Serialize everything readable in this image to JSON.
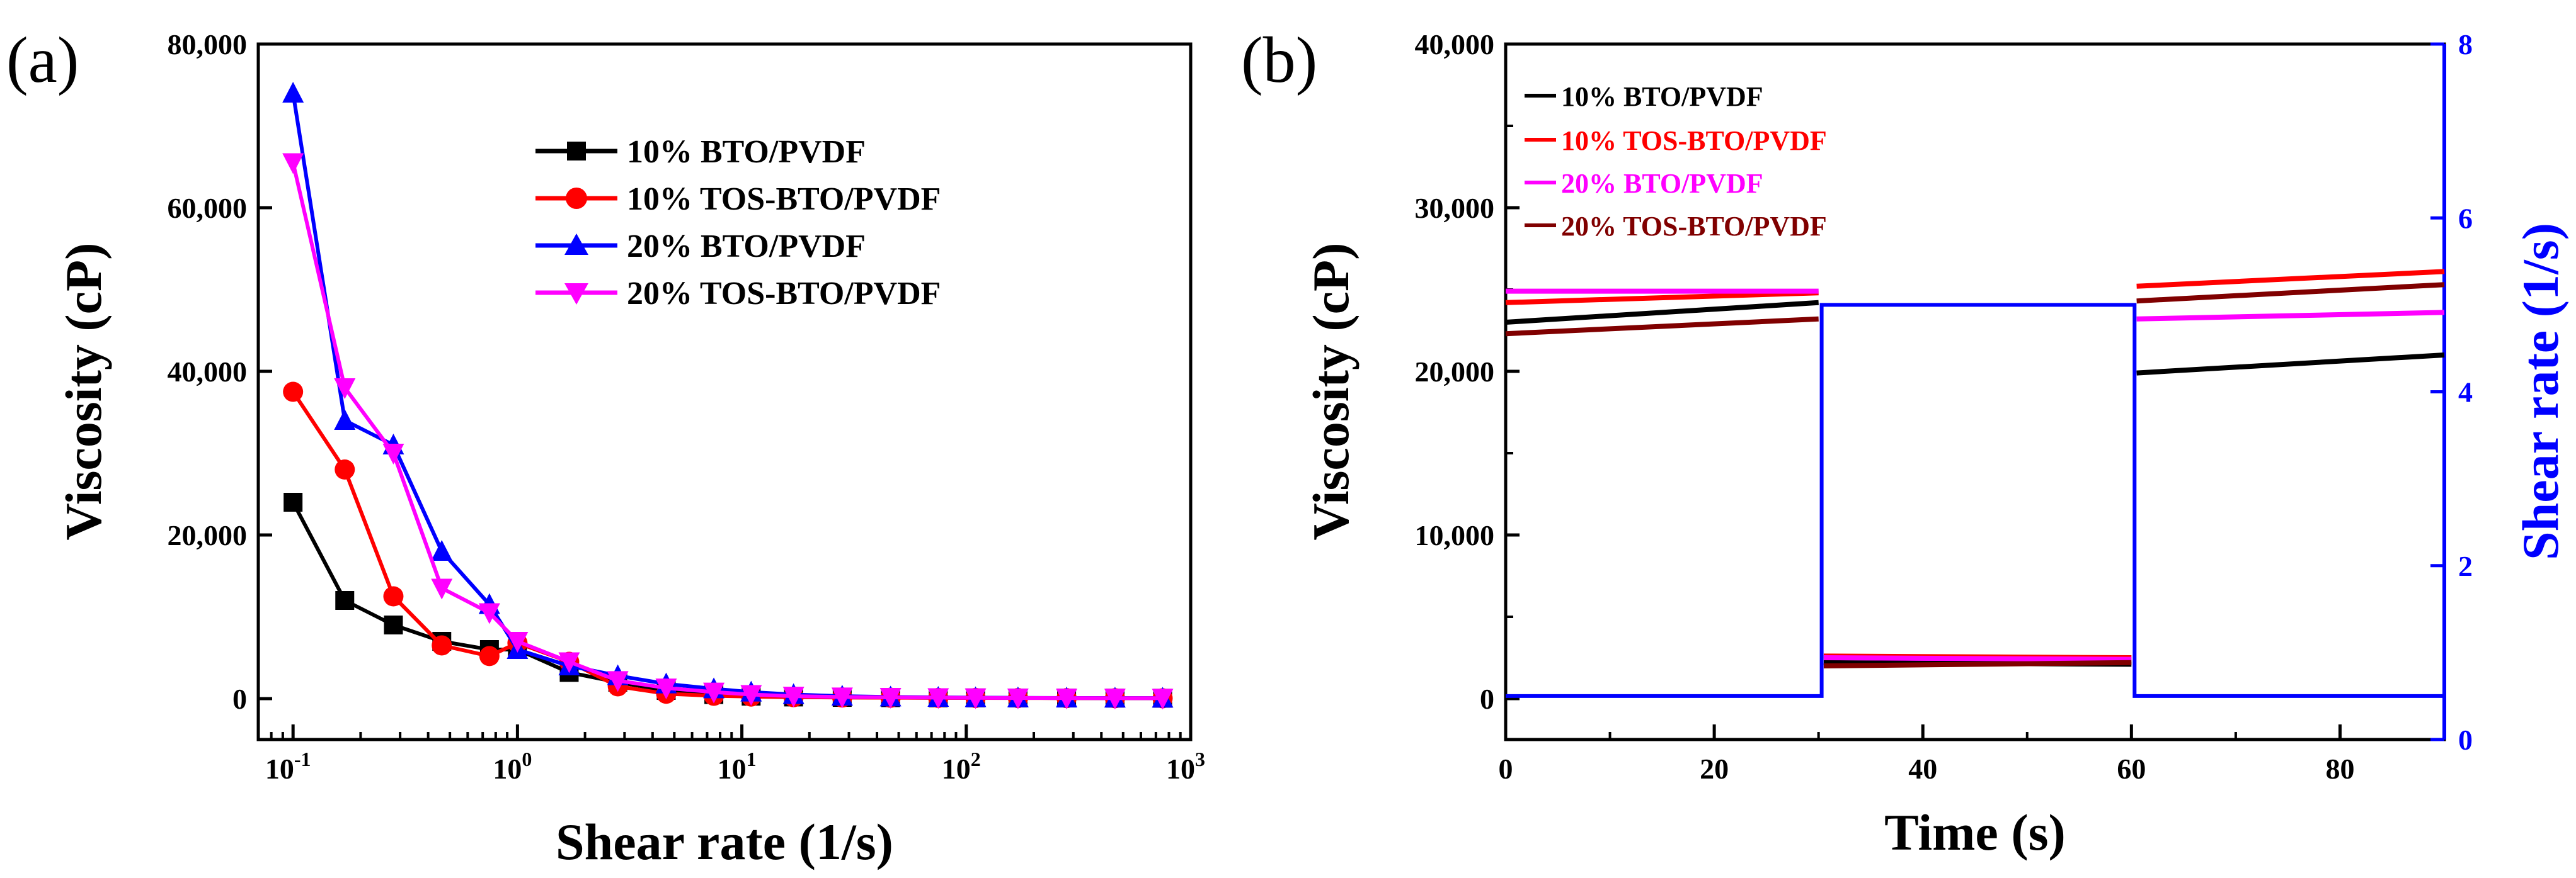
{
  "colors": {
    "black": "#000000",
    "red": "#ff0000",
    "blue": "#0000ff",
    "magenta": "#ff00ff",
    "darkred": "#800000"
  },
  "chart_data": [
    {
      "panel_label": "(a)",
      "type": "line",
      "title": "",
      "xlabel": "Shear rate (1/s)",
      "ylabel": "Viscosity (cP)",
      "xscale": "log",
      "xlim": [
        0.07,
        1000
      ],
      "ylim": [
        -5000,
        80000
      ],
      "grid": false,
      "legend_position": "top-right",
      "x_ticks": [
        {
          "value": 0.1,
          "base": "10",
          "exp": "-1"
        },
        {
          "value": 1,
          "base": "10",
          "exp": "0"
        },
        {
          "value": 10,
          "base": "10",
          "exp": "1"
        },
        {
          "value": 100,
          "base": "10",
          "exp": "2"
        },
        {
          "value": 1000,
          "base": "10",
          "exp": "3"
        }
      ],
      "y_ticks": [
        {
          "value": 0,
          "label": "0"
        },
        {
          "value": 20000,
          "label": "20,000"
        },
        {
          "value": 40000,
          "label": "40,000"
        },
        {
          "value": 60000,
          "label": "60,000"
        },
        {
          "value": 80000,
          "label": "80,000"
        }
      ],
      "x": [
        0.1,
        0.17,
        0.28,
        0.46,
        0.75,
        1.0,
        1.7,
        2.8,
        4.6,
        7.5,
        11,
        17,
        28,
        46,
        75,
        110,
        170,
        280,
        460,
        750
      ],
      "series": [
        {
          "name": "10% BTO/PVDF",
          "color": "#000000",
          "marker": "square",
          "values": [
            24000,
            12000,
            9000,
            7000,
            6000,
            6000,
            3200,
            2000,
            1000,
            500,
            300,
            200,
            150,
            120,
            100,
            90,
            80,
            70,
            60,
            50
          ]
        },
        {
          "name": "10% TOS-BTO/PVDF",
          "color": "#ff0000",
          "marker": "circle",
          "values": [
            37500,
            28000,
            12500,
            6500,
            5200,
            6800,
            4500,
            1500,
            600,
            350,
            250,
            180,
            140,
            110,
            90,
            80,
            70,
            60,
            50,
            40
          ]
        },
        {
          "name": "20% BTO/PVDF",
          "color": "#0000ff",
          "marker": "triangle-up",
          "values": [
            74000,
            34000,
            31000,
            18000,
            11500,
            6000,
            4000,
            2800,
            1800,
            1200,
            800,
            500,
            300,
            200,
            150,
            120,
            100,
            80,
            70,
            60
          ]
        },
        {
          "name": "20% TOS-BTO/PVDF",
          "color": "#ff00ff",
          "marker": "triangle-down",
          "values": [
            65500,
            38000,
            30000,
            13500,
            10500,
            7000,
            4500,
            2200,
            1300,
            800,
            500,
            300,
            200,
            150,
            120,
            100,
            80,
            70,
            60,
            50
          ]
        }
      ]
    },
    {
      "panel_label": "(b)",
      "type": "line",
      "title": "",
      "xlabel": "Time (s)",
      "ylabel": "Viscosity (cP)",
      "y2label": "Shear rate (1/s)",
      "xlim": [
        0,
        90
      ],
      "ylim": [
        -2500,
        40000
      ],
      "y2lim": [
        0,
        8
      ],
      "grid": false,
      "legend_position": "top-left",
      "x_ticks": [
        {
          "value": 0,
          "label": "0"
        },
        {
          "value": 20,
          "label": "20"
        },
        {
          "value": 40,
          "label": "40"
        },
        {
          "value": 60,
          "label": "60"
        },
        {
          "value": 80,
          "label": "80"
        }
      ],
      "y_ticks": [
        {
          "value": 0,
          "label": "0"
        },
        {
          "value": 10000,
          "label": "10,000"
        },
        {
          "value": 20000,
          "label": "20,000"
        },
        {
          "value": 30000,
          "label": "30,000"
        },
        {
          "value": 40000,
          "label": "40,000"
        }
      ],
      "y2_ticks": [
        {
          "value": 0,
          "label": "0"
        },
        {
          "value": 2,
          "label": "2"
        },
        {
          "value": 4,
          "label": "4"
        },
        {
          "value": 6,
          "label": "6"
        },
        {
          "value": 8,
          "label": "8"
        }
      ],
      "series": [
        {
          "name": "10% BTO/PVDF",
          "color": "#000000",
          "segments": [
            [
              [
                0,
                23000
              ],
              [
                30,
                24200
              ]
            ],
            [
              [
                30.5,
                2200
              ],
              [
                60,
                2100
              ]
            ],
            [
              [
                60.5,
                19900
              ],
              [
                90,
                21000
              ]
            ]
          ]
        },
        {
          "name": "10% TOS-BTO/PVDF",
          "color": "#ff0000",
          "segments": [
            [
              [
                0,
                24200
              ],
              [
                30,
                24800
              ]
            ],
            [
              [
                30.5,
                2600
              ],
              [
                60,
                2500
              ]
            ],
            [
              [
                60.5,
                25200
              ],
              [
                90,
                26100
              ]
            ]
          ]
        },
        {
          "name": "20% BTO/PVDF",
          "color": "#ff00ff",
          "segments": [
            [
              [
                0,
                24900
              ],
              [
                30,
                24900
              ]
            ],
            [
              [
                30.5,
                2500
              ],
              [
                60,
                2400
              ]
            ],
            [
              [
                60.5,
                23200
              ],
              [
                90,
                23600
              ]
            ]
          ]
        },
        {
          "name": "20% TOS-BTO/PVDF",
          "color": "#800000",
          "segments": [
            [
              [
                0,
                22300
              ],
              [
                30,
                23200
              ]
            ],
            [
              [
                30.5,
                2000
              ],
              [
                60,
                2200
              ]
            ],
            [
              [
                60.5,
                24300
              ],
              [
                90,
                25300
              ]
            ]
          ]
        }
      ],
      "shear_rate_series": {
        "name": "Shear rate",
        "color": "#0000ff",
        "x": [
          0,
          30.3,
          30.3,
          60.3,
          60.3,
          90
        ],
        "values": [
          0.5,
          0.5,
          5,
          5,
          0.5,
          0.5
        ]
      }
    }
  ]
}
